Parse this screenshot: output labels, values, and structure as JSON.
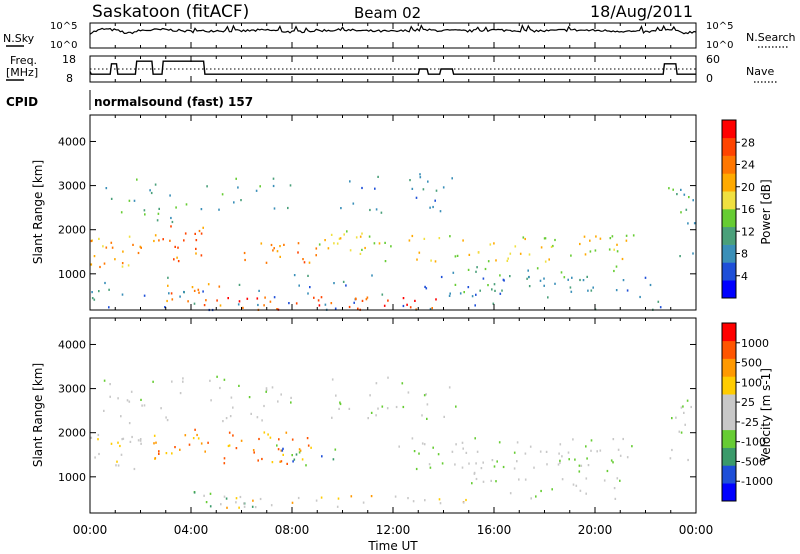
{
  "header": {
    "station": "Saskatoon (fitACF)",
    "beam": "Beam 02",
    "date": "18/Aug/2011"
  },
  "noise_panel": {
    "left_label": "N.Sky",
    "right_label": "N.Search",
    "left_ticks": [
      "10^5",
      "10^0"
    ],
    "right_ticks": [
      "10^5",
      "10^0"
    ]
  },
  "freq_panel": {
    "left_label_1": "Freq.",
    "left_label_2": "[MHz]",
    "right_label": "Nave",
    "left_ticks": [
      "18",
      "8"
    ],
    "right_ticks": [
      "60",
      "0"
    ]
  },
  "cpid": {
    "label": "CPID",
    "program": "normalsound (fast) 157"
  },
  "x_axis": {
    "label": "Time UT",
    "ticks": [
      "00:00",
      "04:00",
      "08:00",
      "12:00",
      "16:00",
      "20:00",
      "00:00"
    ]
  },
  "colors": {
    "power_scale": [
      "#0000ff",
      "#1e4fd8",
      "#3a8fb8",
      "#4aa07a",
      "#66cc33",
      "#f0e040",
      "#ffaa00",
      "#ff7700",
      "#ff4400",
      "#ff0000"
    ],
    "velocity_scale": [
      "#0000ff",
      "#1e4fd8",
      "#3a9a6a",
      "#66cc33",
      "#c8c8c8",
      "#c8c8c8",
      "#ffcc00",
      "#ff9900",
      "#ff5500",
      "#ff0000"
    ]
  },
  "chart_data": [
    {
      "type": "line",
      "name": "noise",
      "ylim": [
        0,
        5
      ],
      "x": [
        0,
        0.5,
        1,
        1.5,
        2,
        3,
        4,
        5,
        6,
        7,
        8,
        9,
        10,
        11,
        12,
        13,
        14,
        15,
        16,
        17,
        18,
        19,
        20,
        21,
        22,
        23,
        23.5,
        24
      ],
      "series": [
        {
          "values": [
            3.0,
            3.8,
            3.6,
            2.9,
            3.5,
            3.7,
            3.3,
            3.5,
            3.4,
            3.6,
            3.2,
            3.5,
            3.6,
            3.4,
            3.3,
            3.6,
            3.5,
            3.4,
            3.6,
            3.5,
            3.4,
            3.6,
            3.5,
            3.4,
            3.2,
            3.6,
            3.0,
            3.3
          ]
        }
      ]
    },
    {
      "type": "line",
      "name": "frequency",
      "ylim": [
        8,
        18
      ],
      "x": [
        0,
        0.05,
        0.8,
        0.85,
        1.05,
        1.1,
        1.8,
        1.85,
        2.45,
        2.5,
        2.85,
        2.9,
        4.5,
        4.55,
        13.0,
        13.05,
        13.35,
        13.4,
        13.85,
        13.9,
        14.35,
        14.4,
        22.7,
        22.75,
        23.2,
        23.25,
        24
      ],
      "series": [
        {
          "values": [
            12,
            11,
            11,
            15,
            15,
            11,
            11,
            16,
            16,
            11,
            11,
            16,
            16,
            11,
            11,
            13,
            13,
            11,
            11,
            13,
            13,
            11,
            11,
            15,
            15,
            11,
            11
          ]
        }
      ]
    },
    {
      "type": "heatmap",
      "title": "",
      "xlabel": "",
      "ylabel": "Slant Range [km]",
      "xlim": [
        0,
        24
      ],
      "ylim": [
        180,
        4600
      ],
      "yticks": [
        1000,
        2000,
        3000,
        4000
      ],
      "colorbar": {
        "label": "Power [dB]",
        "ticks": [
          "4",
          "8",
          "12",
          "16",
          "20",
          "24",
          "28"
        ]
      },
      "scatter_regions": [
        {
          "t": [
            0,
            2
          ],
          "r": [
            1150,
            1900
          ],
          "level": 6,
          "density": 0.75
        },
        {
          "t": [
            0,
            24
          ],
          "r": [
            200,
            1000
          ],
          "level": 2,
          "density": 0.22
        },
        {
          "t": [
            3,
            5.5
          ],
          "r": [
            300,
            800
          ],
          "level": 7,
          "density": 0.6
        },
        {
          "t": [
            5,
            14
          ],
          "r": [
            200,
            500
          ],
          "level": 8,
          "density": 0.7
        },
        {
          "t": [
            2.5,
            4.5
          ],
          "r": [
            1300,
            2200
          ],
          "level": 7,
          "density": 0.65
        },
        {
          "t": [
            6,
            9
          ],
          "r": [
            1200,
            1800
          ],
          "level": 7,
          "density": 0.55
        },
        {
          "t": [
            9,
            13
          ],
          "r": [
            1300,
            2000
          ],
          "level": 5,
          "density": 0.5
        },
        {
          "t": [
            13,
            21.5
          ],
          "r": [
            1300,
            1900
          ],
          "level": 5,
          "density": 0.55
        },
        {
          "t": [
            14,
            21
          ],
          "r": [
            500,
            1200
          ],
          "level": 3,
          "density": 0.35
        },
        {
          "t": [
            0.5,
            8
          ],
          "r": [
            2200,
            3200
          ],
          "level": 3,
          "density": 0.25
        },
        {
          "t": [
            9.5,
            14.5
          ],
          "r": [
            2300,
            3300
          ],
          "level": 2,
          "density": 0.25
        },
        {
          "t": [
            22.8,
            24
          ],
          "r": [
            1300,
            3000
          ],
          "level": 3,
          "density": 0.35
        }
      ]
    },
    {
      "type": "heatmap",
      "title": "",
      "xlabel": "Time UT",
      "ylabel": "Slant Range [km]",
      "xlim": [
        0,
        24
      ],
      "ylim": [
        180,
        4600
      ],
      "yticks": [
        1000,
        2000,
        3000,
        4000
      ],
      "colorbar": {
        "label": "Velocity [m s-1]",
        "ticks": [
          "1000",
          "500",
          "100",
          "25",
          "-25",
          "-100",
          "-500",
          "-1000"
        ]
      },
      "scatter_regions": [
        {
          "t": [
            0,
            2
          ],
          "r": [
            1200,
            2000
          ],
          "level": 5,
          "density": 0.7
        },
        {
          "t": [
            2.5,
            9
          ],
          "r": [
            1300,
            2100
          ],
          "level": 7,
          "density": 0.55
        },
        {
          "t": [
            7,
            10
          ],
          "r": [
            1200,
            1800
          ],
          "level": 2,
          "density": 0.35
        },
        {
          "t": [
            5,
            15
          ],
          "r": [
            300,
            600
          ],
          "level": 6,
          "density": 0.55
        },
        {
          "t": [
            3.5,
            6.5
          ],
          "r": [
            300,
            800
          ],
          "level": 3,
          "density": 0.35
        },
        {
          "t": [
            12,
            21.5
          ],
          "r": [
            1200,
            1900
          ],
          "level": 4,
          "density": 0.55
        },
        {
          "t": [
            14,
            21
          ],
          "r": [
            500,
            1200
          ],
          "level": 4,
          "density": 0.3
        },
        {
          "t": [
            0.5,
            8
          ],
          "r": [
            2200,
            3300
          ],
          "level": 4,
          "density": 0.3
        },
        {
          "t": [
            9.5,
            14.5
          ],
          "r": [
            2300,
            3300
          ],
          "level": 4,
          "density": 0.3
        },
        {
          "t": [
            22.8,
            24
          ],
          "r": [
            1300,
            3000
          ],
          "level": 4,
          "density": 0.35
        }
      ]
    }
  ]
}
